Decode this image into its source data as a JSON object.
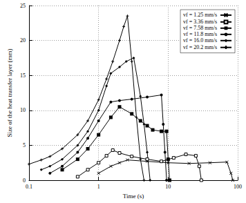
{
  "chart_data": {
    "type": "line",
    "xlabel": "Time (s)",
    "ylabel": "Size of the heat transfer layer (mm)",
    "log": "x",
    "grid": true,
    "legend": "upper right",
    "xlim": [
      0.1,
      100
    ],
    "xticks": [
      0.1,
      1,
      10,
      100
    ],
    "ylim": [
      0,
      25
    ],
    "yticks": [
      0,
      5,
      10,
      15,
      20,
      25
    ],
    "series": [
      {
        "name": "vf = 1.25 mm/s",
        "color": "#000000",
        "marker": "x",
        "x": [
          1,
          1.5,
          2,
          2.6,
          5,
          10,
          20,
          40,
          70,
          80,
          85
        ],
        "values": [
          1,
          2,
          2.5,
          2.9,
          2.7,
          2.5,
          2.4,
          2.5,
          2.6,
          1,
          0
        ]
      },
      {
        "name": "vf = 3.36 mm/s",
        "color": "#000000",
        "marker": "square",
        "x": [
          0.5,
          0.7,
          1,
          1.3,
          1.6,
          2,
          3,
          5,
          8,
          12,
          18,
          25,
          28,
          30
        ],
        "values": [
          0.5,
          1.5,
          2.5,
          3.5,
          4.3,
          3.9,
          3.4,
          3,
          2.7,
          3.2,
          3.7,
          3.5,
          2,
          0
        ]
      },
      {
        "name": "vf = 7.58 mm/s",
        "color": "#000000",
        "marker": "filled_square",
        "x": [
          0.3,
          0.5,
          0.7,
          1,
          1.5,
          2,
          3,
          4,
          5,
          6,
          8,
          9.5,
          10,
          10.5
        ],
        "values": [
          1.5,
          3,
          4.5,
          6.5,
          9,
          10.5,
          9.5,
          8.5,
          7.8,
          7.2,
          7,
          7,
          3,
          0
        ]
      },
      {
        "name": "vf = 11.8 mm/s",
        "color": "#000000",
        "marker": "circle",
        "x": [
          0.2,
          0.3,
          0.5,
          0.7,
          1,
          1.5,
          2,
          3,
          5,
          8,
          8.5,
          9,
          9.5
        ],
        "values": [
          1,
          2,
          4,
          6,
          8.5,
          11.2,
          11.4,
          11.6,
          11.9,
          12.2,
          8,
          4,
          0
        ]
      },
      {
        "name": "vf = 16.0 mm/s",
        "color": "#000000",
        "marker": "diamond",
        "x": [
          0.15,
          0.2,
          0.3,
          0.5,
          0.7,
          1,
          1.3,
          1.5,
          2,
          2.5,
          3.2,
          4,
          4.5,
          5,
          5.5
        ],
        "values": [
          1.5,
          2,
          3,
          5,
          7,
          10,
          13.5,
          15.3,
          16.2,
          17,
          17.5,
          12,
          8,
          4,
          0
        ]
      },
      {
        "name": "vf = 20.2 mm/s",
        "color": "#000000",
        "marker": "plus",
        "x": [
          0.1,
          0.15,
          0.2,
          0.3,
          0.5,
          0.7,
          1,
          1.3,
          1.6,
          2,
          2.3,
          2.6,
          3,
          3.5,
          4,
          4.5
        ],
        "values": [
          2.3,
          2.9,
          3.4,
          4.5,
          6.5,
          8.5,
          11.5,
          14.5,
          17,
          20,
          22,
          23.5,
          17,
          9,
          3,
          0
        ]
      }
    ]
  }
}
